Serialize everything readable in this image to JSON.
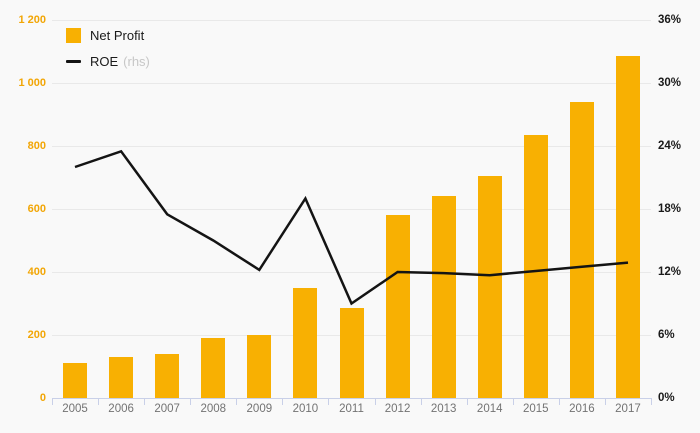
{
  "colors": {
    "background": "#f9f9f9",
    "bar": "#f8b002",
    "line": "#141414",
    "gridline": "#e9e9e9",
    "axis_line": "#c9d0e8",
    "left_axis_text": "#f2a606",
    "right_axis_text": "#1a1a1a",
    "x_axis_text": "#737373"
  },
  "legend": {
    "items": [
      {
        "label": "Net Profit",
        "suffix": "",
        "swatch": "bar-swatch"
      },
      {
        "label": "ROE",
        "suffix": "(rhs)",
        "swatch": "line-swatch"
      }
    ]
  },
  "chart_data": {
    "type": "bar",
    "title": "",
    "categories": [
      "2005",
      "2006",
      "2007",
      "2008",
      "2009",
      "2010",
      "2011",
      "2012",
      "2013",
      "2014",
      "2015",
      "2016",
      "2017"
    ],
    "series": [
      {
        "name": "Net Profit",
        "type": "bar",
        "axis": "left",
        "values": [
          110,
          130,
          140,
          190,
          200,
          350,
          285,
          580,
          640,
          705,
          835,
          940,
          1085
        ]
      },
      {
        "name": "ROE (rhs)",
        "type": "line",
        "axis": "right",
        "values": [
          22,
          23.5,
          17.5,
          15,
          12.2,
          19,
          9,
          12,
          11.9,
          11.7,
          12.1,
          12.5,
          12.9
        ]
      }
    ],
    "left_axis": {
      "min": 0,
      "max": 1200,
      "step": 200,
      "tick_values": [
        0,
        200,
        400,
        600,
        800,
        1000,
        1200
      ],
      "tick_labels": [
        "0",
        "200",
        "400",
        "600",
        "800",
        "1 000",
        "1 200"
      ]
    },
    "right_axis": {
      "min": 0,
      "max": 36,
      "step": 6,
      "unit": "%",
      "tick_values": [
        0,
        6,
        12,
        18,
        24,
        30,
        36
      ],
      "tick_labels": [
        "0%",
        "6%",
        "12%",
        "18%",
        "24%",
        "30%",
        "36%"
      ]
    },
    "grid": true,
    "legend_position": "top-left"
  }
}
